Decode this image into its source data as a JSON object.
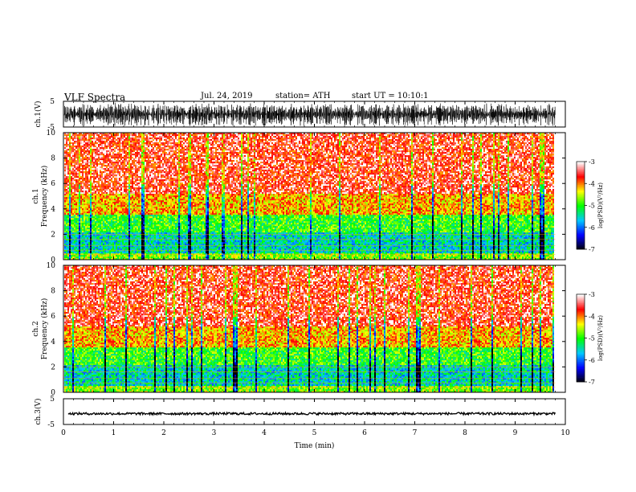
{
  "header": {
    "title": "VLF Spectra",
    "date": "Jul. 24, 2019",
    "station": "station= ATH",
    "start_ut": "start UT =   10:10:1"
  },
  "chart_data": [
    {
      "type": "line",
      "panel": "ch1-waveform",
      "ylabel": "ch.1(V)",
      "ylim": [
        -5,
        5
      ],
      "yticks": [
        "5",
        "-5"
      ],
      "xlim": [
        0,
        10
      ],
      "data_end_min": 9.8,
      "amplitude_range": [
        -4.5,
        4.5
      ],
      "line_color": "#000000"
    },
    {
      "type": "heatmap",
      "panel": "ch1-spectrogram",
      "ylabel_top": "ch.1",
      "ylabel_bottom": "Frequency (kHz)",
      "ylim": [
        0,
        10
      ],
      "yticks": [
        "0",
        "2",
        "4",
        "6",
        "8",
        "10"
      ],
      "xlim": [
        0,
        10
      ],
      "data_end_min": 9.8,
      "colorbar": {
        "label": "log(PSD)(V²/Hz)",
        "range": [
          -7,
          -3
        ],
        "ticks": [
          "-3",
          "-4",
          "-5",
          "-6",
          "-7"
        ],
        "colors": [
          "#000000",
          "#0000ff",
          "#00c8ff",
          "#00ff00",
          "#ffff00",
          "#ff0000",
          "#ffffff"
        ]
      }
    },
    {
      "type": "heatmap",
      "panel": "ch2-spectrogram",
      "ylabel_top": "ch.2",
      "ylabel_bottom": "Frequency (kHz)",
      "ylim": [
        0,
        10
      ],
      "yticks": [
        "0",
        "2",
        "4",
        "6",
        "8",
        "10"
      ],
      "xlim": [
        0,
        10
      ],
      "data_end_min": 9.8,
      "colorbar": {
        "label": "log(PSD)(V²/Hz)",
        "range": [
          -7,
          -3
        ],
        "ticks": [
          "-3",
          "-4",
          "-5",
          "-6",
          "-7"
        ],
        "colors": [
          "#000000",
          "#0000ff",
          "#00c8ff",
          "#00ff00",
          "#ffff00",
          "#ff0000",
          "#ffffff"
        ]
      }
    },
    {
      "type": "line",
      "panel": "ch3-waveform",
      "ylabel": "ch.3(V)",
      "ylim": [
        -5,
        5
      ],
      "yticks": [
        "5",
        "-5"
      ],
      "xlim": [
        0,
        10
      ],
      "data_end_min": 9.8,
      "baseline_v": -0.8,
      "line_color": "#000000"
    }
  ],
  "xaxis": {
    "label": "Time (min)",
    "ticks": [
      "0",
      "1",
      "2",
      "3",
      "4",
      "5",
      "6",
      "7",
      "8",
      "9",
      "10"
    ]
  }
}
